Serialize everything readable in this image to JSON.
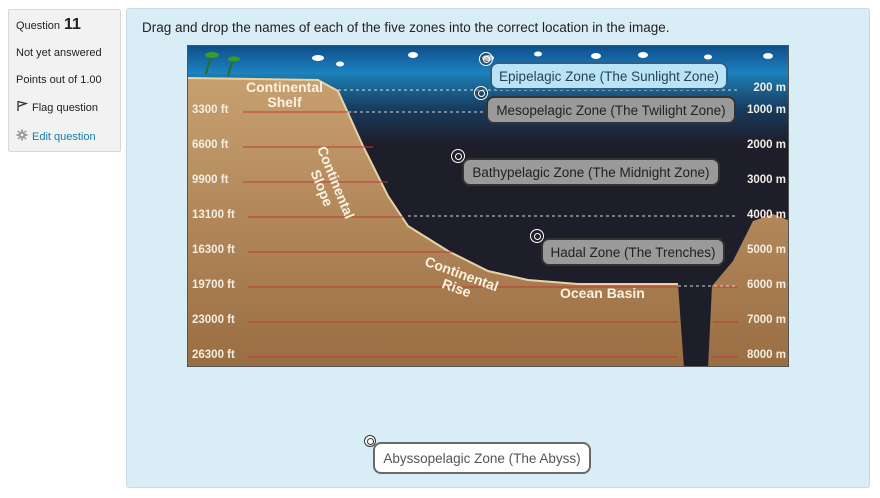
{
  "question": {
    "label": "Question",
    "number": "11",
    "status": "Not yet answered",
    "points": "Points out of 1.00",
    "flag_label": "Flag question",
    "edit_label": "Edit question"
  },
  "prompt": "Drag and drop the names of each of the five zones into the correct location in the image.",
  "image": {
    "feet_labels": [
      "3300 ft",
      "6600 ft",
      "9900 ft",
      "13100 ft",
      "16300 ft",
      "19700 ft",
      "23000 ft",
      "26300 ft"
    ],
    "meter_labels": [
      "200 m",
      "1000 m",
      "2000 m",
      "3000 m",
      "4000 m",
      "5000 m",
      "6000 m",
      "7000 m",
      "8000 m"
    ],
    "features": {
      "shelf": "Continental\nShelf",
      "slope": "Continental\nSlope",
      "rise": "Continental\nRise",
      "basin": "Ocean Basin"
    }
  },
  "dropzones": [
    {
      "label": "Epipelagic Zone (The Sunlight Zone)",
      "active": true
    },
    {
      "label": "Mesopelagic Zone (The Twilight Zone)",
      "active": false
    },
    {
      "label": "Bathypelagic Zone (The Midnight Zone)",
      "active": false
    },
    {
      "label": "Hadal Zone (The Trenches)",
      "active": false
    }
  ],
  "drag_item": "Abyssopelagic Zone (The Abyss)",
  "colors": {
    "panel_bg": "#d9edf7",
    "info_bg": "#f2f2f2",
    "link": "#0f7dab",
    "deep_water": "#1e1d2a",
    "surface_water": "#1f8fbf",
    "sediment": "#b0845a"
  }
}
